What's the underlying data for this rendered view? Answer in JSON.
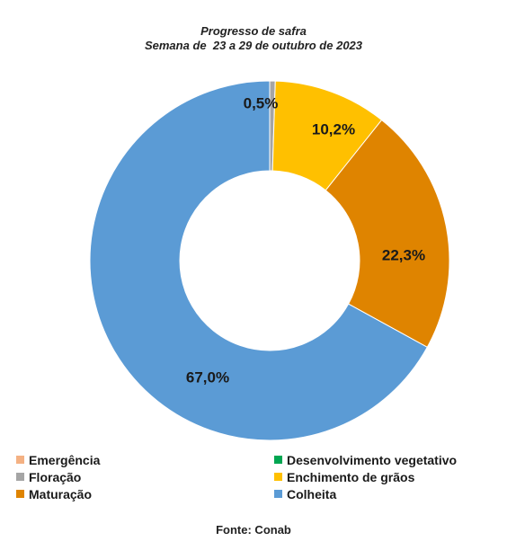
{
  "chart_data": {
    "type": "pie",
    "title": "Progresso de safra",
    "subtitle": "Semana de  23 a 29 de outubro de 2023",
    "categories": [
      "Emergência",
      "Desenvolvimento vegetativo",
      "Floração",
      "Enchimento de grãos",
      "Maturação",
      "Colheita"
    ],
    "values": [
      0.0,
      0.0,
      0.5,
      10.2,
      22.3,
      67.0
    ],
    "value_labels": [
      "",
      "",
      "0,5%",
      "10,2%",
      "22,3%",
      "67,0%"
    ],
    "colors": [
      "#F4B183",
      "#00A651",
      "#A5A5A5",
      "#FFC000",
      "#DF8400",
      "#5B9BD5"
    ],
    "donut": true,
    "legend_position": "bottom"
  },
  "legend": [
    {
      "label": "Emergência",
      "color": "#F4B183"
    },
    {
      "label": "Desenvolvimento vegetativo",
      "color": "#00A651"
    },
    {
      "label": "Floração",
      "color": "#A5A5A5"
    },
    {
      "label": "Enchimento de grãos",
      "color": "#FFC000"
    },
    {
      "label": "Maturação",
      "color": "#DF8400"
    },
    {
      "label": "Colheita",
      "color": "#5B9BD5"
    }
  ],
  "source": "Fonte: Conab"
}
